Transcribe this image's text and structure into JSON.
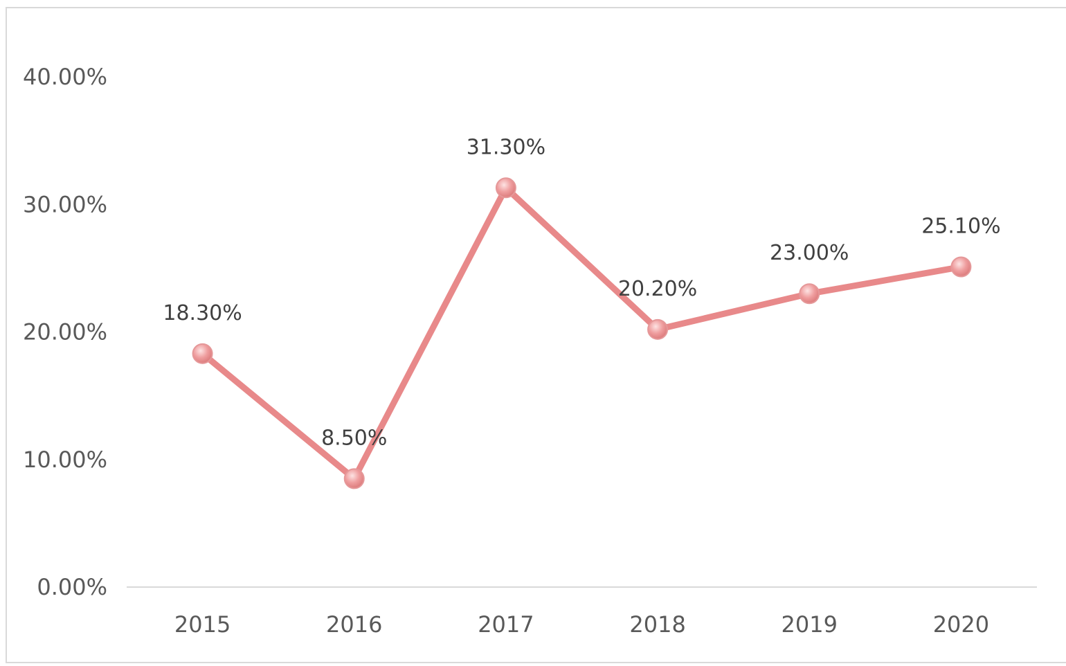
{
  "chart_data": {
    "type": "line",
    "categories": [
      "2015",
      "2016",
      "2017",
      "2018",
      "2019",
      "2020"
    ],
    "series": [
      {
        "values": [
          18.3,
          8.5,
          31.3,
          20.2,
          23.0,
          25.1
        ],
        "data_labels": [
          "18.30%",
          "8.50%",
          "31.30%",
          "20.20%",
          "23.00%",
          "25.10%"
        ],
        "color": "#E8898A"
      }
    ],
    "y_ticks": [
      0,
      10,
      20,
      30,
      40
    ],
    "y_tick_labels": [
      "0.00%",
      "10.00%",
      "20.00%",
      "30.00%",
      "40.00%"
    ],
    "ylim": [
      0,
      40
    ],
    "grid": false,
    "legend": "none"
  }
}
